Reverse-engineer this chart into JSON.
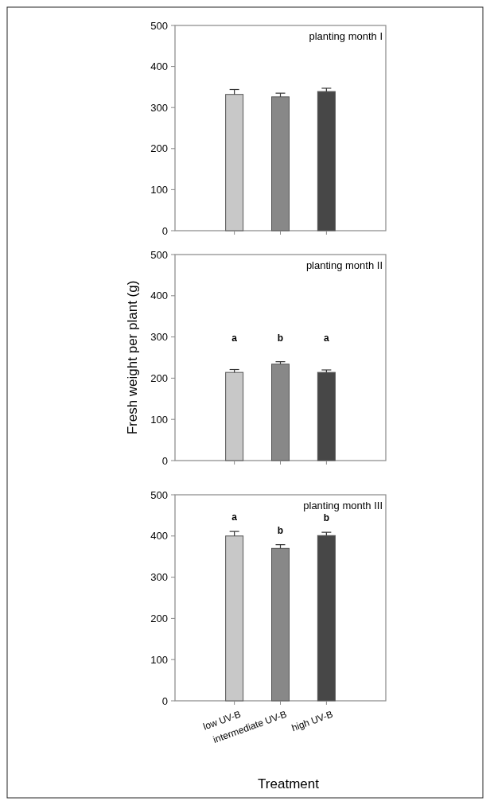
{
  "chart_data": [
    {
      "type": "bar",
      "title": "planting month I",
      "categories": [
        null,
        null,
        null
      ],
      "values": [
        332,
        326,
        339
      ],
      "colors": [
        "#c8c8c8",
        "#888888",
        "#474747"
      ],
      "errors": [
        [
          332,
          344
        ],
        [
          326,
          335
        ],
        [
          339,
          347
        ]
      ],
      "ylim": [
        0,
        500
      ],
      "yticks": [
        0,
        100,
        200,
        300,
        400,
        500
      ]
    },
    {
      "type": "bar",
      "title": "planting month II",
      "ylabel": "Fresh weight per plant (g)",
      "categories": [
        null,
        null,
        null
      ],
      "values": [
        214,
        234,
        214
      ],
      "colors": [
        "#c8c8c8",
        "#888888",
        "#474747"
      ],
      "errors": [
        [
          214,
          221
        ],
        [
          234,
          240
        ],
        [
          214,
          220
        ]
      ],
      "ylim": [
        0,
        500
      ],
      "yticks": [
        0,
        100,
        200,
        300,
        400,
        500
      ],
      "annotations": [
        "a",
        "b",
        "a"
      ]
    },
    {
      "type": "bar",
      "title": "planting month III",
      "xlabel": "Treatment",
      "categories": [
        "low UV-B",
        "intermediate UV-B",
        "high UV-B"
      ],
      "values": [
        400,
        370,
        401
      ],
      "colors": [
        "#c8c8c8",
        "#888888",
        "#474747"
      ],
      "errors": [
        [
          400,
          411
        ],
        [
          370,
          379
        ],
        [
          401,
          409
        ]
      ],
      "ylim": [
        0,
        500
      ],
      "yticks": [
        0,
        100,
        200,
        300,
        400,
        500
      ],
      "annotations": [
        "a",
        "b",
        "b"
      ]
    }
  ]
}
